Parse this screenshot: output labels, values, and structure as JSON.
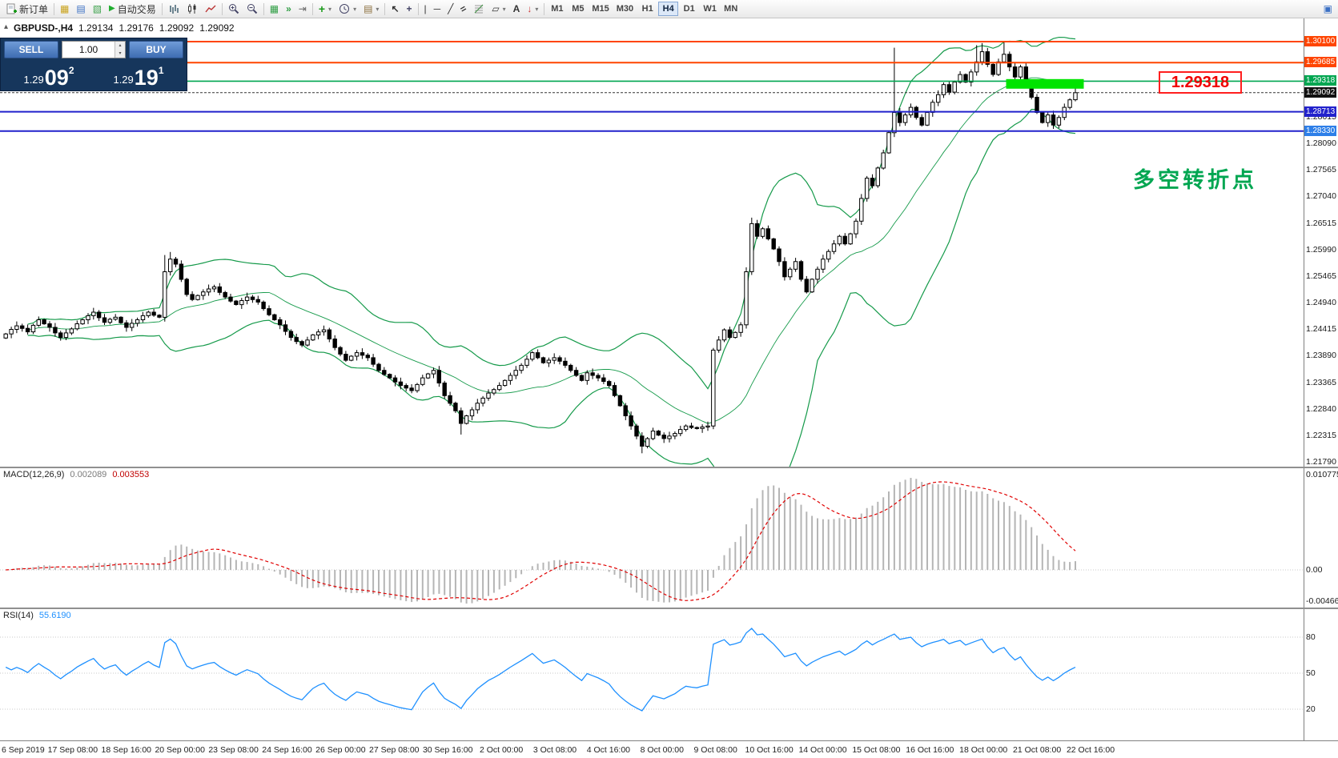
{
  "toolbar": {
    "new_order_label": "新订单",
    "autotrading_label": "自动交易",
    "timeframes": [
      "M1",
      "M5",
      "M15",
      "M30",
      "H1",
      "H4",
      "D1",
      "W1",
      "MN"
    ],
    "active_timeframe": "H4"
  },
  "icons": {
    "symbol_marker": "▴",
    "market_watch": "▦",
    "data_window": "▤",
    "navigator": "▧",
    "autotrading_play": "▶",
    "tile_windows": "▦",
    "auto_scroll": "»",
    "chart_shift": "⇥",
    "indicators_plus": "+",
    "dropdown": "▾",
    "cursor": "↖",
    "crosshair": "+",
    "vline": "|",
    "hline": "─",
    "trendline": "╱",
    "channel": "=",
    "text": "A",
    "arrows": "↓",
    "shapes": "▱",
    "window": "▣",
    "spin_up": "▴",
    "spin_down": "▾"
  },
  "chart_header": {
    "symbol": "GBPUSD-,H4",
    "open": "1.29134",
    "high": "1.29176",
    "low": "1.29092",
    "close": "1.29092"
  },
  "trade_panel": {
    "sell_label": "SELL",
    "buy_label": "BUY",
    "volume": "1.00",
    "bid": {
      "big": "1.29",
      "pips": "09",
      "sup": "2"
    },
    "ask": {
      "big": "1.29",
      "pips": "19",
      "sup": "1"
    }
  },
  "levels": [
    {
      "display": "1.30100",
      "value": 1.301,
      "line_color": "#FF4500",
      "tag_color": "#FF4500",
      "line_width": 2
    },
    {
      "display": "1.29685",
      "value": 1.29685,
      "line_color": "#FF4500",
      "tag_color": "#FF4500",
      "line_width": 2
    },
    {
      "display": "1.29318",
      "value": 1.29318,
      "line_color": "#00A651",
      "tag_color": "#00A651",
      "line_width": 1.6
    },
    {
      "display": "1.28713",
      "value": 1.28713,
      "line_color": "#2222CC",
      "tag_color": "#2222CC",
      "line_width": 2
    },
    {
      "display": "1.28330",
      "value": 1.2833,
      "line_color": "#2222CC",
      "tag_color": "#2E7FE8",
      "line_width": 2
    }
  ],
  "current_price": {
    "display": "1.29092",
    "value": 1.29092,
    "tag_color": "#111111"
  },
  "annotations": {
    "callout_text": "1.29318",
    "note_text": "多空转折点"
  },
  "price_axis_labels": [
    "1.28615",
    "1.28090",
    "1.27565",
    "1.27040",
    "1.26515",
    "1.25990",
    "1.25465",
    "1.24940",
    "1.24415",
    "1.23890",
    "1.23365",
    "1.22840",
    "1.22315",
    "1.21790"
  ],
  "macd": {
    "label": "MACD(12,26,9)",
    "main_value": "0.002089",
    "signal_value": "0.003553",
    "axis": [
      "0.010775",
      "0.00",
      "-0.004668"
    ]
  },
  "rsi": {
    "label": "RSI(14)",
    "value": "55.6190",
    "levels": [
      "80",
      "50",
      "20"
    ]
  },
  "time_axis": [
    "6 Sep 2019",
    "17 Sep 08:00",
    "18 Sep 16:00",
    "20 Sep 00:00",
    "23 Sep 08:00",
    "24 Sep 16:00",
    "26 Sep 00:00",
    "27 Sep 08:00",
    "30 Sep 16:00",
    "2 Oct 00:00",
    "3 Oct 08:00",
    "4 Oct 16:00",
    "8 Oct 00:00",
    "9 Oct 08:00",
    "10 Oct 16:00",
    "14 Oct 00:00",
    "15 Oct 08:00",
    "16 Oct 16:00",
    "18 Oct 00:00",
    "21 Oct 08:00",
    "22 Oct 16:00"
  ],
  "colors": {
    "bollinger": "#159A4A",
    "macd_bars": "#b5b5b5",
    "macd_signal": "#E00000",
    "rsi_line": "#1E90FF",
    "zone": "#00E400"
  },
  "chart_data": {
    "type": "candlestick",
    "symbol": "GBPUSD",
    "timeframe": "H4",
    "ohlc_display": [
      "1.29134",
      "1.29176",
      "1.29092",
      "1.29092"
    ],
    "indicators": {
      "bollinger": {
        "period": 20,
        "deviation": 2
      },
      "macd": {
        "fast": 12,
        "slow": 26,
        "signal": 9
      },
      "rsi": {
        "period": 14
      }
    },
    "zone": {
      "start_index": 183,
      "end_index": 196,
      "price_top": 1.2936,
      "price_bottom": 1.2917
    },
    "wick_overrides": {
      "29": {
        "h": 1.2588
      },
      "30": {
        "h": 1.2594
      },
      "83": {
        "l": 1.2233
      },
      "116": {
        "l": 1.2196
      },
      "136": {
        "h": 1.2662
      },
      "162": {
        "h": 1.2998
      },
      "177": {
        "h": 1.3003
      },
      "178": {
        "h": 1.3007
      },
      "182": {
        "h": 1.301
      },
      "195": {
        "h": 1.2918
      }
    },
    "closes": [
      1.2432,
      1.2441,
      1.2448,
      1.2443,
      1.2436,
      1.2449,
      1.246,
      1.2452,
      1.2445,
      1.2434,
      1.2425,
      1.2434,
      1.2442,
      1.2452,
      1.246,
      1.2468,
      1.2475,
      1.2464,
      1.2455,
      1.2461,
      1.2465,
      1.2454,
      1.2445,
      1.2453,
      1.246,
      1.2468,
      1.2475,
      1.2469,
      1.2465,
      1.2555,
      1.258,
      1.257,
      1.254,
      1.251,
      1.25,
      1.2508,
      1.2515,
      1.2521,
      1.2525,
      1.2514,
      1.2505,
      1.2497,
      1.249,
      1.2498,
      1.2505,
      1.25,
      1.2495,
      1.2482,
      1.247,
      1.246,
      1.245,
      1.2437,
      1.2425,
      1.2417,
      1.241,
      1.242,
      1.243,
      1.2436,
      1.244,
      1.2422,
      1.2405,
      1.2392,
      1.238,
      1.2388,
      1.2395,
      1.239,
      1.2385,
      1.2372,
      1.236,
      1.2352,
      1.2345,
      1.2337,
      1.233,
      1.2325,
      1.232,
      1.2332,
      1.2345,
      1.2353,
      1.236,
      1.2335,
      1.231,
      1.2295,
      1.228,
      1.2255,
      1.227,
      1.2282,
      1.2295,
      1.2305,
      1.2315,
      1.2322,
      1.233,
      1.234,
      1.235,
      1.236,
      1.237,
      1.2382,
      1.2395,
      1.2385,
      1.2375,
      1.238,
      1.2385,
      1.2378,
      1.237,
      1.236,
      1.235,
      1.234,
      1.2355,
      1.235,
      1.2345,
      1.2338,
      1.233,
      1.231,
      1.229,
      1.227,
      1.225,
      1.223,
      1.221,
      1.2225,
      1.224,
      1.2232,
      1.2225,
      1.223,
      1.2235,
      1.2243,
      1.225,
      1.2247,
      1.2245,
      1.2248,
      1.225,
      1.24,
      1.242,
      1.244,
      1.2425,
      1.2435,
      1.245,
      1.2555,
      1.265,
      1.2625,
      1.264,
      1.262,
      1.26,
      1.2575,
      1.2545,
      1.256,
      1.2575,
      1.254,
      1.2515,
      1.254,
      1.256,
      1.258,
      1.2595,
      1.261,
      1.2625,
      1.261,
      1.263,
      1.2655,
      1.27,
      1.274,
      1.2725,
      1.276,
      1.279,
      1.283,
      1.287,
      1.285,
      1.2865,
      1.288,
      1.286,
      1.2845,
      1.287,
      1.289,
      1.2905,
      1.2925,
      1.291,
      1.293,
      1.2945,
      1.293,
      1.295,
      1.297,
      1.299,
      1.2965,
      1.2945,
      1.297,
      1.2985,
      1.296,
      1.294,
      1.296,
      1.293,
      1.29,
      1.287,
      1.285,
      1.2865,
      1.2845,
      1.286,
      1.288,
      1.2895,
      1.2909
    ]
  }
}
